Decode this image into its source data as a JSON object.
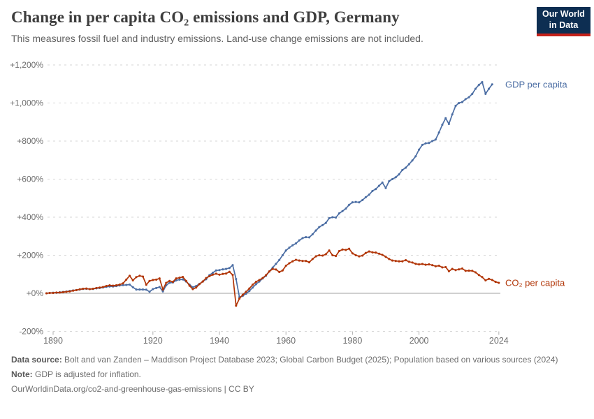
{
  "header": {
    "title": "Change in per capita CO₂ emissions and GDP, Germany",
    "subtitle": "This measures fossil fuel and industry emissions. Land-use change emissions are not included.",
    "logo": {
      "line1": "Our World",
      "line2": "in Data"
    }
  },
  "chart_data": {
    "type": "line",
    "title": "Change in per capita CO₂ emissions and GDP, Germany",
    "subtitle": "This measures fossil fuel and industry emissions. Land-use change emissions are not included.",
    "xlabel": "",
    "ylabel": "",
    "xlim": [
      1888,
      2025
    ],
    "ylim": [
      -200,
      1200
    ],
    "grid": "horizontal-dashed",
    "legend_position": "end-of-line-labels",
    "x_ticks": [
      1890,
      1920,
      1940,
      1960,
      1980,
      2000,
      2024
    ],
    "x_tick_labels": [
      "1890",
      "1920",
      "1940",
      "1960",
      "1980",
      "2000",
      "2024"
    ],
    "y_ticks": [
      -200,
      0,
      200,
      400,
      600,
      800,
      1000,
      1200
    ],
    "y_tick_labels": [
      "-200%",
      "+0%",
      "+200%",
      "+400%",
      "+600%",
      "+800%",
      "+1,000%",
      "+1,200%"
    ],
    "colors": {
      "gdp": "#4c6ea4",
      "co2": "#b13507",
      "grid": "#d6d6d6",
      "zero_line": "#a0a0a0",
      "tick_text": "#6e6e6e"
    },
    "series": [
      {
        "id": "gdp",
        "name": "GDP per capita",
        "color": "#4c6ea4",
        "start_year": 1888,
        "end_year": 2022,
        "values": [
          0,
          2,
          3,
          3,
          5,
          7,
          9,
          12,
          15,
          17,
          20,
          23,
          24,
          22,
          23,
          26,
          28,
          31,
          34,
          36,
          36,
          38,
          41,
          43,
          44,
          46,
          32,
          20,
          20,
          20,
          19,
          8,
          22,
          28,
          33,
          10,
          42,
          55,
          57,
          68,
          72,
          73,
          62,
          45,
          32,
          38,
          50,
          62,
          74,
          95,
          108,
          120,
          122,
          126,
          128,
          133,
          148,
          75,
          -20,
          -14,
          -2,
          12,
          30,
          48,
          62,
          78,
          92,
          115,
          135,
          155,
          175,
          200,
          225,
          240,
          252,
          262,
          278,
          290,
          295,
          294,
          310,
          330,
          348,
          358,
          370,
          395,
          400,
          398,
          420,
          432,
          445,
          465,
          478,
          480,
          478,
          490,
          505,
          518,
          538,
          548,
          565,
          582,
          553,
          589,
          600,
          610,
          625,
          648,
          660,
          678,
          698,
          720,
          755,
          780,
          788,
          790,
          800,
          808,
          845,
          885,
          920,
          890,
          940,
          985,
          1000,
          1005,
          1020,
          1030,
          1048,
          1075,
          1095,
          1110,
          1048,
          1075,
          1098
        ]
      },
      {
        "id": "co2",
        "name": "CO₂ per capita",
        "color": "#b13507",
        "start_year": 1888,
        "end_year": 2024,
        "values": [
          0,
          2,
          2,
          4,
          4,
          6,
          8,
          10,
          14,
          17,
          21,
          24,
          25,
          22,
          24,
          28,
          30,
          33,
          38,
          42,
          40,
          42,
          46,
          52,
          72,
          92,
          68,
          85,
          92,
          88,
          45,
          65,
          70,
          72,
          78,
          20,
          55,
          65,
          60,
          78,
          82,
          86,
          65,
          40,
          22,
          30,
          48,
          62,
          80,
          90,
          98,
          103,
          98,
          102,
          104,
          113,
          97,
          -65,
          -28,
          -8,
          8,
          25,
          45,
          60,
          70,
          80,
          95,
          115,
          128,
          125,
          112,
          120,
          145,
          158,
          168,
          176,
          172,
          170,
          170,
          163,
          180,
          194,
          200,
          198,
          205,
          225,
          200,
          196,
          222,
          230,
          228,
          234,
          210,
          200,
          194,
          198,
          212,
          220,
          215,
          214,
          208,
          202,
          192,
          180,
          172,
          170,
          168,
          168,
          174,
          166,
          162,
          155,
          152,
          154,
          150,
          152,
          148,
          142,
          145,
          136,
          138,
          116,
          128,
          122,
          126,
          130,
          118,
          119,
          118,
          110,
          96,
          85,
          68,
          76,
          70,
          60,
          55
        ]
      }
    ]
  },
  "footer": {
    "sources_label": "Data source:",
    "sources_text": "Bolt and van Zanden – Maddison Project Database 2023; Global Carbon Budget (2025); Population based on various sources (2024)",
    "note_label": "Note:",
    "note_text": "GDP is adjusted for inflation.",
    "citation": "OurWorldinData.org/co2-and-greenhouse-gas-emissions | CC BY"
  }
}
